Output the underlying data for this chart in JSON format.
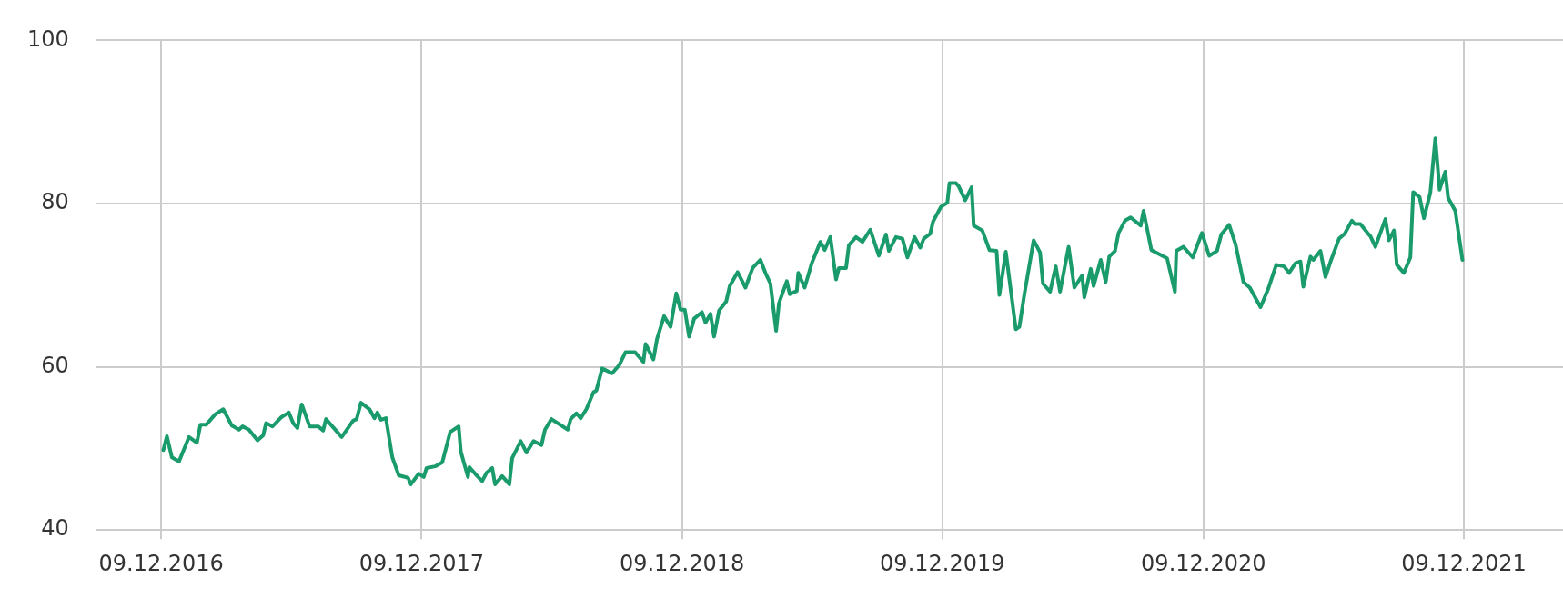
{
  "chart_data": {
    "type": "line",
    "color": "#1a9b6b",
    "grid": true,
    "legend": false,
    "marker": "none",
    "line_style": "solid",
    "x": [
      "2016-12-12",
      "2016-12-17",
      "2016-12-24",
      "2017-01-03",
      "2017-01-17",
      "2017-01-28",
      "2017-02-02",
      "2017-02-10",
      "2017-02-23",
      "2017-03-06",
      "2017-03-18",
      "2017-03-28",
      "2017-04-02",
      "2017-04-11",
      "2017-04-23",
      "2017-05-01",
      "2017-05-05",
      "2017-05-14",
      "2017-05-26",
      "2017-06-06",
      "2017-06-12",
      "2017-06-18",
      "2017-06-24",
      "2017-07-05",
      "2017-07-17",
      "2017-07-24",
      "2017-07-28",
      "2017-08-19",
      "2017-09-04",
      "2017-09-09",
      "2017-09-15",
      "2017-09-27",
      "2017-10-04",
      "2017-10-08",
      "2017-10-13",
      "2017-10-20",
      "2017-10-29",
      "2017-11-07",
      "2017-11-20",
      "2017-11-24",
      "2017-12-05",
      "2017-12-12",
      "2017-12-16",
      "2017-12-28",
      "2018-01-07",
      "2018-01-10",
      "2018-01-18",
      "2018-01-30",
      "2018-02-02",
      "2018-02-12",
      "2018-02-14",
      "2018-02-25",
      "2018-03-04",
      "2018-03-10",
      "2018-03-18",
      "2018-03-22",
      "2018-04-01",
      "2018-04-11",
      "2018-04-15",
      "2018-04-27",
      "2018-05-05",
      "2018-05-15",
      "2018-05-26",
      "2018-05-31",
      "2018-06-09",
      "2018-07-02",
      "2018-07-06",
      "2018-07-14",
      "2018-07-20",
      "2018-07-28",
      "2018-08-07",
      "2018-08-11",
      "2018-08-19",
      "2018-09-02",
      "2018-09-12",
      "2018-09-21",
      "2018-10-04",
      "2018-10-16",
      "2018-10-19",
      "2018-10-30",
      "2018-11-04",
      "2018-11-14",
      "2018-11-23",
      "2018-12-01",
      "2018-12-07",
      "2018-12-13",
      "2018-12-19",
      "2018-12-26",
      "2019-01-06",
      "2019-01-11",
      "2019-01-18",
      "2019-01-23",
      "2019-01-30",
      "2019-02-09",
      "2019-02-14",
      "2019-02-25",
      "2019-03-08",
      "2019-03-18",
      "2019-03-29",
      "2019-04-05",
      "2019-04-12",
      "2019-04-20",
      "2019-04-24",
      "2019-05-05",
      "2019-05-09",
      "2019-05-19",
      "2019-05-21",
      "2019-05-30",
      "2019-06-09",
      "2019-06-21",
      "2019-06-27",
      "2019-07-05",
      "2019-07-13",
      "2019-07-17",
      "2019-07-27",
      "2019-07-31",
      "2019-08-10",
      "2019-08-19",
      "2019-08-30",
      "2019-09-11",
      "2019-09-21",
      "2019-09-25",
      "2019-10-05",
      "2019-10-14",
      "2019-10-21",
      "2019-10-31",
      "2019-11-08",
      "2019-11-13",
      "2019-11-22",
      "2019-11-26",
      "2019-12-07",
      "2019-12-16",
      "2019-12-19",
      "2019-12-28",
      "2020-01-01",
      "2020-01-10",
      "2020-01-19",
      "2020-01-22",
      "2020-02-03",
      "2020-02-13",
      "2020-02-23",
      "2020-02-27",
      "2020-03-07",
      "2020-03-21",
      "2020-03-26",
      "2020-04-02",
      "2020-04-15",
      "2020-04-24",
      "2020-04-28",
      "2020-05-08",
      "2020-05-16",
      "2020-05-22",
      "2020-06-03",
      "2020-06-11",
      "2020-06-22",
      "2020-06-25",
      "2020-07-04",
      "2020-07-08",
      "2020-07-18",
      "2020-07-25",
      "2020-07-30",
      "2020-08-07",
      "2020-08-12",
      "2020-08-21",
      "2020-08-29",
      "2020-09-12",
      "2020-09-16",
      "2020-09-27",
      "2020-10-19",
      "2020-10-30",
      "2020-11-01",
      "2020-11-11",
      "2020-11-24",
      "2020-12-07",
      "2020-12-17",
      "2020-12-28",
      "2021-01-03",
      "2021-01-14",
      "2021-01-23",
      "2021-02-03",
      "2021-02-12",
      "2021-02-27",
      "2021-03-10",
      "2021-03-21",
      "2021-04-01",
      "2021-04-08",
      "2021-04-17",
      "2021-04-24",
      "2021-04-28",
      "2021-05-08",
      "2021-05-12",
      "2021-05-22",
      "2021-05-29",
      "2021-06-06",
      "2021-06-17",
      "2021-06-25",
      "2021-07-05",
      "2021-07-09",
      "2021-07-17",
      "2021-07-27",
      "2021-07-31",
      "2021-08-07",
      "2021-08-21",
      "2021-08-26",
      "2021-09-02",
      "2021-09-06",
      "2021-09-16",
      "2021-09-25",
      "2021-09-29",
      "2021-10-08",
      "2021-10-14",
      "2021-10-23",
      "2021-10-30",
      "2021-11-05",
      "2021-11-13",
      "2021-11-17",
      "2021-11-27",
      "2021-12-07"
    ],
    "values": [
      49.8,
      51.5,
      48.9,
      48.4,
      51.4,
      50.7,
      52.9,
      52.9,
      54.2,
      54.8,
      52.8,
      52.3,
      52.7,
      52.3,
      51.0,
      51.6,
      53.1,
      52.7,
      53.8,
      54.4,
      53.1,
      52.5,
      55.4,
      52.7,
      52.7,
      52.2,
      53.6,
      51.4,
      53.4,
      53.6,
      55.6,
      54.8,
      53.7,
      54.4,
      53.5,
      53.7,
      48.9,
      46.7,
      46.4,
      45.6,
      46.9,
      46.5,
      47.6,
      47.8,
      48.3,
      49.3,
      52.0,
      52.7,
      49.6,
      46.5,
      47.7,
      46.6,
      46.0,
      47.0,
      47.6,
      45.6,
      46.6,
      45.6,
      48.8,
      50.9,
      49.5,
      50.9,
      50.4,
      52.3,
      53.6,
      52.3,
      53.6,
      54.3,
      53.7,
      54.8,
      56.9,
      57.1,
      59.8,
      59.2,
      60.2,
      61.8,
      61.8,
      60.6,
      62.8,
      60.9,
      63.4,
      66.2,
      64.9,
      69.0,
      67.0,
      67.0,
      63.7,
      65.9,
      66.7,
      65.4,
      66.5,
      63.7,
      66.9,
      68.0,
      69.9,
      71.6,
      69.7,
      72.1,
      73.1,
      71.5,
      70.2,
      64.4,
      67.8,
      70.5,
      68.9,
      69.3,
      71.5,
      69.7,
      72.7,
      75.3,
      74.3,
      75.9,
      70.7,
      72.1,
      72.1,
      74.9,
      75.9,
      75.3,
      76.8,
      73.6,
      76.2,
      74.2,
      75.9,
      75.7,
      73.4,
      75.9,
      74.6,
      75.7,
      76.3,
      77.8,
      79.6,
      80.1,
      82.5,
      82.5,
      82.1,
      80.4,
      82.0,
      77.3,
      76.7,
      74.3,
      74.2,
      68.8,
      74.1,
      64.6,
      64.9,
      68.9,
      75.5,
      74.0,
      70.2,
      69.2,
      72.3,
      69.2,
      74.7,
      69.7,
      71.2,
      68.5,
      72.0,
      69.9,
      73.1,
      70.4,
      73.5,
      74.2,
      76.4,
      77.9,
      78.3,
      77.3,
      79.1,
      74.3,
      73.3,
      69.2,
      74.2,
      74.7,
      73.4,
      76.4,
      73.6,
      74.2,
      76.2,
      77.4,
      75.0,
      70.4,
      69.7,
      67.3,
      69.6,
      72.5,
      72.3,
      71.5,
      72.7,
      72.9,
      69.8,
      73.5,
      73.1,
      74.2,
      71.0,
      73.1,
      75.7,
      76.3,
      77.9,
      77.5,
      77.5,
      76.4,
      76.0,
      74.7,
      78.1,
      75.5,
      76.7,
      72.5,
      71.5,
      73.4,
      81.4,
      80.8,
      78.2,
      81.3,
      88.0,
      81.7,
      83.9,
      80.7,
      79.1,
      73.1
    ],
    "xlim": [
      "2016-09-09",
      "2022-04-27"
    ],
    "xticks": [
      {
        "value": "2016-12-09",
        "label": "09.12.2016"
      },
      {
        "value": "2017-12-09",
        "label": "09.12.2017"
      },
      {
        "value": "2018-12-09",
        "label": "09.12.2018"
      },
      {
        "value": "2019-12-09",
        "label": "09.12.2019"
      },
      {
        "value": "2020-12-09",
        "label": "09.12.2020"
      },
      {
        "value": "2021-12-09",
        "label": "09.12.2021"
      }
    ],
    "ylim": [
      40,
      100
    ],
    "yticks": [
      40,
      60,
      80,
      100
    ]
  }
}
